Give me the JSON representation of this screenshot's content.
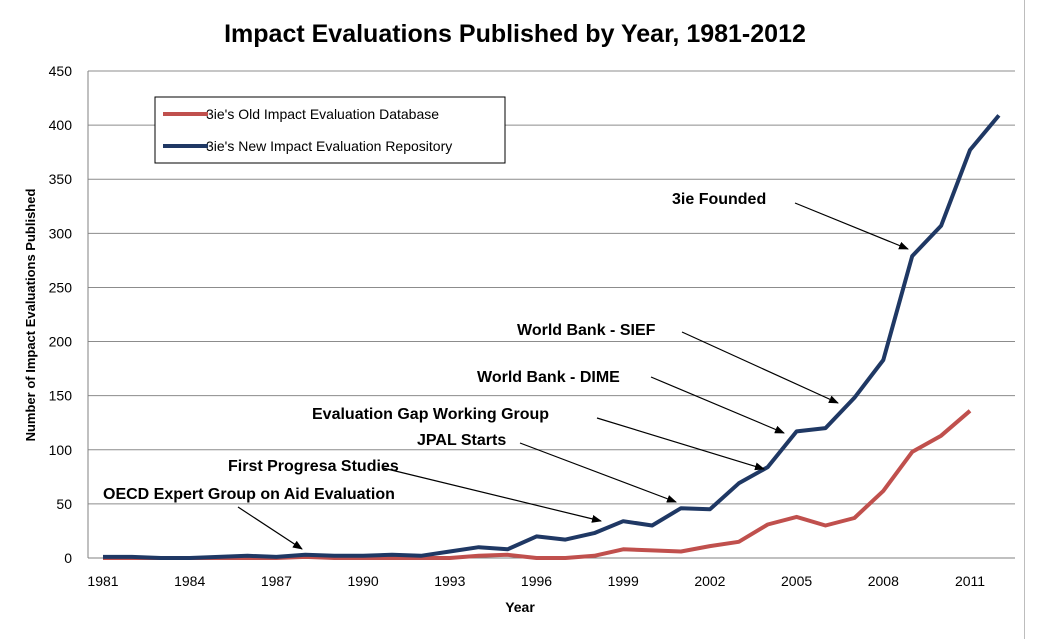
{
  "chart_data": {
    "type": "line",
    "title": "Impact Evaluations Published by Year, 1981-2012",
    "xlabel": "Year",
    "ylabel": "Number of Impact Evaluations Published",
    "xlim": [
      1981,
      2012
    ],
    "ylim": [
      0,
      450
    ],
    "yticks": [
      0,
      50,
      100,
      150,
      200,
      250,
      300,
      350,
      400,
      450
    ],
    "xticks": [
      1981,
      1984,
      1987,
      1990,
      1993,
      1996,
      1999,
      2002,
      2005,
      2008,
      2011
    ],
    "grid": true,
    "legend_position": "top-left",
    "series": [
      {
        "name": "3ie's Old Impact Evaluation Database",
        "color": "#c0504d",
        "x": [
          1981,
          1982,
          1983,
          1984,
          1985,
          1986,
          1987,
          1988,
          1989,
          1990,
          1991,
          1992,
          1993,
          1994,
          1995,
          1996,
          1997,
          1998,
          1999,
          2000,
          2001,
          2002,
          2003,
          2004,
          2005,
          2006,
          2007,
          2008,
          2009,
          2010,
          2011
        ],
        "values": [
          0,
          0,
          0,
          0,
          0,
          0,
          0,
          1,
          0,
          0,
          0,
          0,
          0,
          2,
          3,
          0,
          0,
          2,
          8,
          7,
          6,
          11,
          15,
          31,
          38,
          30,
          37,
          62,
          98,
          113,
          136
        ]
      },
      {
        "name": "3ie's New Impact Evaluation Repository",
        "color": "#1f3864",
        "x": [
          1981,
          1982,
          1983,
          1984,
          1985,
          1986,
          1987,
          1988,
          1989,
          1990,
          1991,
          1992,
          1993,
          1994,
          1995,
          1996,
          1997,
          1998,
          1999,
          2000,
          2001,
          2002,
          2003,
          2004,
          2005,
          2006,
          2007,
          2008,
          2009,
          2010,
          2011,
          2012
        ],
        "values": [
          1,
          1,
          0,
          0,
          1,
          2,
          1,
          3,
          2,
          2,
          3,
          2,
          6,
          10,
          8,
          20,
          17,
          23,
          34,
          30,
          46,
          45,
          69,
          84,
          117,
          120,
          148,
          183,
          279,
          307,
          377,
          409
        ]
      }
    ],
    "annotations": [
      {
        "text": "OECD Expert Group on Aid Evaluation",
        "year": 1988
      },
      {
        "text": "First Progresa Studies",
        "year": 1998
      },
      {
        "text": "JPAL Starts",
        "year": 2000
      },
      {
        "text": "Evaluation Gap Working Group",
        "year": 2004
      },
      {
        "text": "World Bank - DIME",
        "year": 2004
      },
      {
        "text": "World Bank - SIEF",
        "year": 2006
      },
      {
        "text": "3ie Founded",
        "year": 2009
      }
    ]
  }
}
